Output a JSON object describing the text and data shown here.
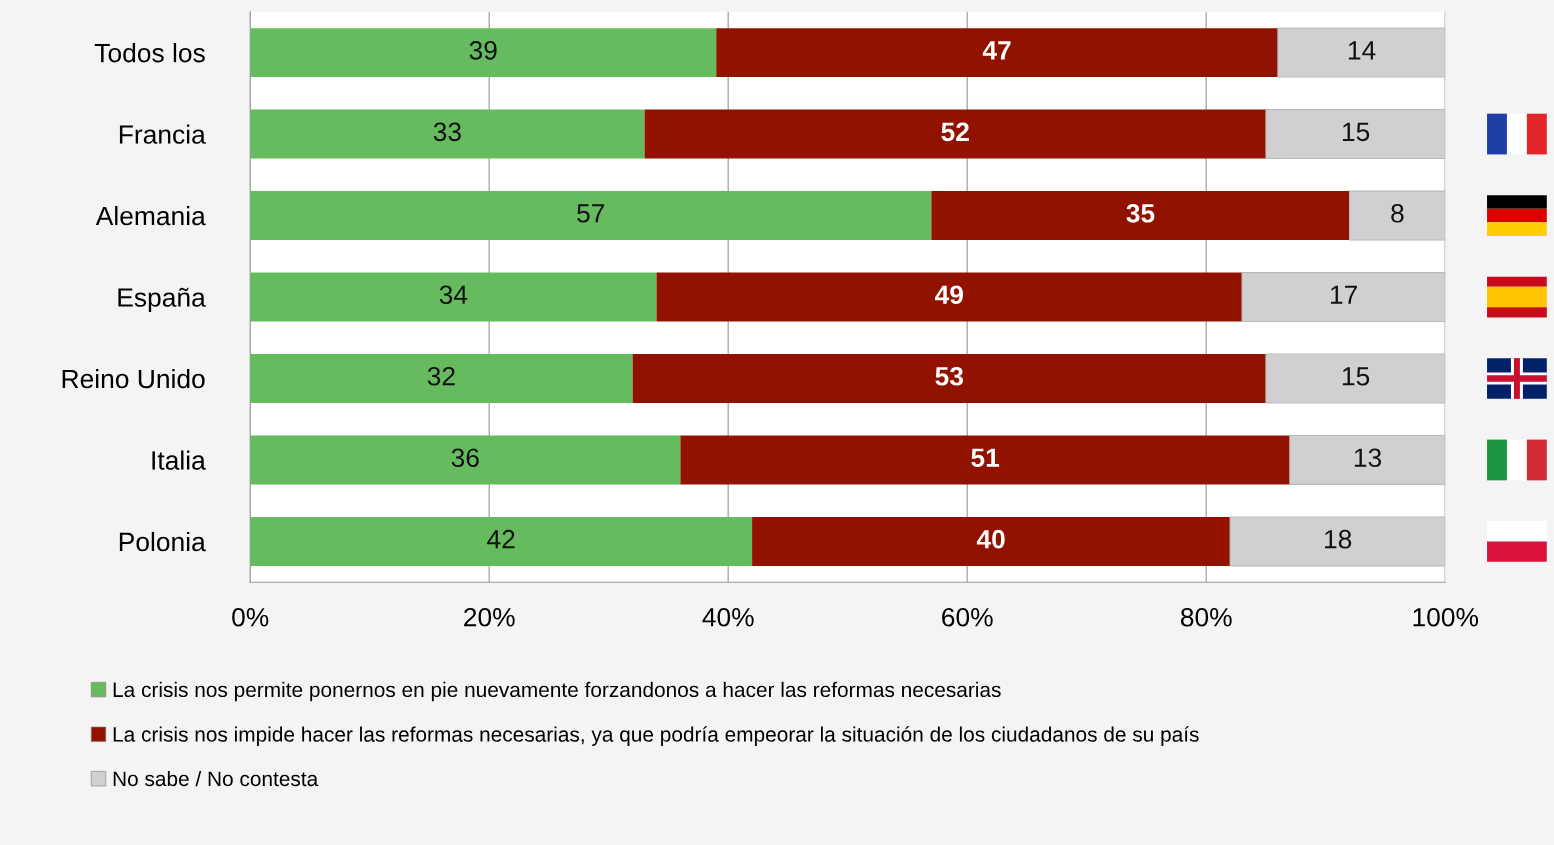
{
  "chart_data": {
    "type": "bar",
    "orientation": "horizontal",
    "stacked": true,
    "categories": [
      "Todos los",
      "Francia",
      "Alemania",
      "España",
      "Reino Unido",
      "Italia",
      "Polonia"
    ],
    "series": [
      {
        "name": "La crisis nos permite ponernos en pie nuevamente forzandonos a hacer las reformas necesarias",
        "color": "#66bb5f",
        "values": [
          39,
          33,
          57,
          34,
          32,
          36,
          42
        ]
      },
      {
        "name": "La crisis nos impide hacer las reformas necesarias, ya que podría empeorar la situación de los ciudadanos de su país",
        "color": "#921200",
        "values": [
          47,
          52,
          35,
          49,
          53,
          51,
          40
        ]
      },
      {
        "name": "No sabe / No contesta",
        "color": "#d0d0d0",
        "values": [
          14,
          15,
          8,
          17,
          15,
          13,
          18
        ]
      }
    ],
    "xlim": [
      0,
      100
    ],
    "xticks": [
      {
        "value": 0,
        "label": "0%"
      },
      {
        "value": 20,
        "label": "20%"
      },
      {
        "value": 40,
        "label": "40%"
      },
      {
        "value": 60,
        "label": "60%"
      },
      {
        "value": 80,
        "label": "80%"
      },
      {
        "value": 100,
        "label": "100%"
      }
    ],
    "grid": "x",
    "legend": "bottom",
    "data_labels": true
  }
}
